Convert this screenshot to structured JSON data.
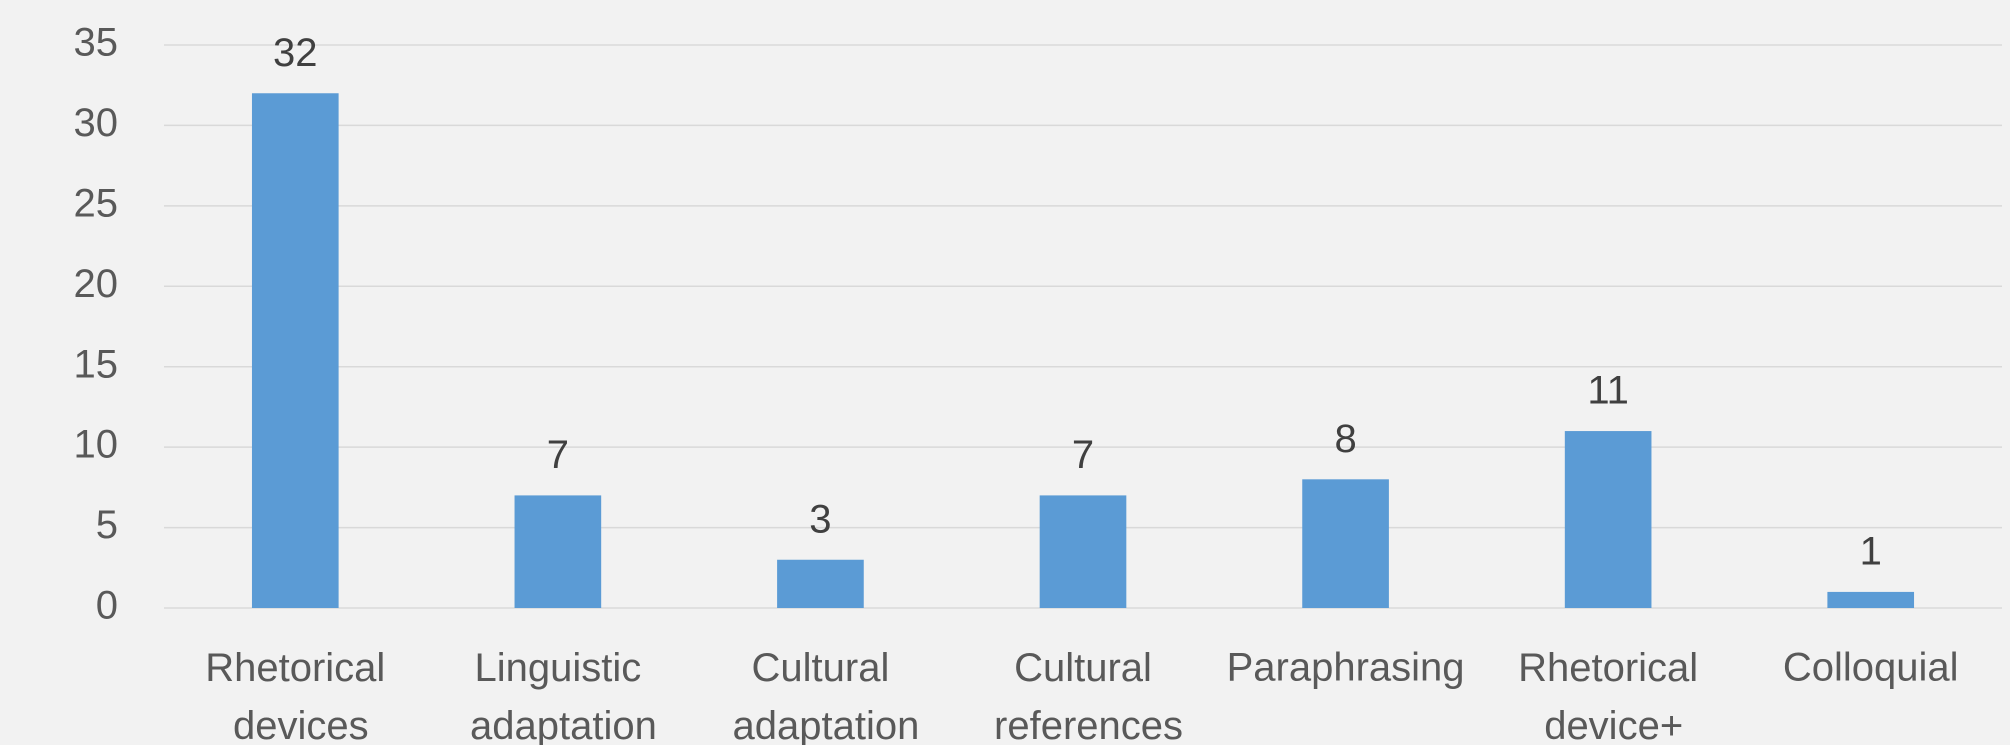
{
  "chart_data": {
    "type": "bar",
    "categories": [
      "Rhetorical devices",
      "Linguistic adaptation",
      "Cultural adaptation",
      "Cultural references",
      "Paraphrasing",
      "Rhetorical device+",
      "Colloquial"
    ],
    "values": [
      32,
      7,
      3,
      7,
      8,
      11,
      1
    ],
    "color": "#5b9bd5",
    "ylim": [
      0,
      35
    ],
    "yticks": [
      0,
      5,
      10,
      15,
      20,
      25,
      30,
      35
    ],
    "grid": true,
    "data_labels": true
  }
}
